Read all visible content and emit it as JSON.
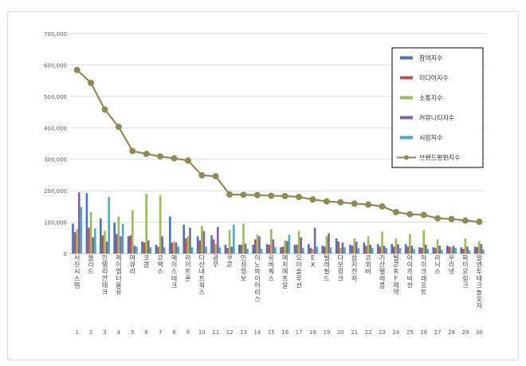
{
  "chart_data": {
    "type": "bar",
    "categories": [
      "서진시스템",
      "쏠리드",
      "인텔리안테크",
      "케이엠더블유",
      "머큐리",
      "코콤",
      "코맥스",
      "에이스테크",
      "라이트론",
      "다산네트웍스",
      "광무",
      "쿠콘",
      "인성정보",
      "이노와이어리스",
      "유비쿼스",
      "에치에프알",
      "오이솔루션",
      "EX",
      "텔레필드",
      "다보링크",
      "삼지전자",
      "코위버",
      "기산텔레콤",
      "텔콘RF제약",
      "아이즈비전",
      "아이크래프트",
      "라닉스",
      "우리넷",
      "파이오링크",
      "알엔투테크놀로지"
    ],
    "rank_labels": [
      "1",
      "2",
      "3",
      "4",
      "5",
      "6",
      "7",
      "8",
      "9",
      "10",
      "11",
      "12",
      "13",
      "14",
      "15",
      "16",
      "17",
      "18",
      "19",
      "20",
      "21",
      "22",
      "23",
      "24",
      "25",
      "26",
      "27",
      "28",
      "29",
      "30"
    ],
    "ylim": [
      0,
      700000
    ],
    "yticks": [
      "0",
      "100,000",
      "200,000",
      "300,000",
      "400,000",
      "500,000",
      "600,000",
      "700,000"
    ],
    "ytick_values": [
      0,
      100000,
      200000,
      300000,
      400000,
      500000,
      600000,
      700000
    ],
    "grid": true,
    "legend_position": "top-right",
    "series": [
      {
        "name": "참여지수",
        "kind": "bar",
        "color": "#4472c4",
        "values": [
          95000,
          192000,
          112000,
          98000,
          55000,
          38000,
          28000,
          118000,
          92000,
          55000,
          58000,
          28000,
          28000,
          28000,
          30000,
          20000,
          28000,
          30000,
          25000,
          48000,
          28000,
          35000,
          30000,
          30000,
          30000,
          20000,
          20000,
          25000,
          20000,
          22000
        ]
      },
      {
        "name": "미디어지수",
        "kind": "bar",
        "color": "#c0504d",
        "values": [
          68000,
          82000,
          58000,
          62000,
          58000,
          35000,
          22000,
          35000,
          48000,
          42000,
          45000,
          18000,
          28000,
          45000,
          28000,
          22000,
          28000,
          18000,
          22000,
          38000,
          25000,
          25000,
          22000,
          22000,
          22000,
          18000,
          18000,
          22000,
          15000,
          20000
        ]
      },
      {
        "name": "소통지수",
        "kind": "bar",
        "color": "#9bbb59",
        "values": [
          78000,
          132000,
          72000,
          118000,
          138000,
          190000,
          185000,
          38000,
          55000,
          88000,
          30000,
          75000,
          95000,
          60000,
          78000,
          42000,
          72000,
          15000,
          55000,
          18000,
          48000,
          55000,
          70000,
          48000,
          62000,
          75000,
          45000,
          20000,
          48000,
          40000
        ]
      },
      {
        "name": "커뮤니티지수",
        "kind": "bar",
        "color": "#8064a2",
        "values": [
          195000,
          52000,
          38000,
          55000,
          25000,
          42000,
          55000,
          35000,
          82000,
          72000,
          85000,
          22000,
          32000,
          55000,
          45000,
          40000,
          52000,
          82000,
          65000,
          35000,
          38000,
          28000,
          25000,
          30000,
          25000,
          28000,
          25000,
          25000,
          22000,
          30000
        ]
      },
      {
        "name": "시장지수",
        "kind": "bar",
        "color": "#4bacc6",
        "values": [
          148000,
          80000,
          180000,
          95000,
          22000,
          20000,
          20000,
          22000,
          20000,
          22000,
          20000,
          92000,
          15000,
          15000,
          20000,
          60000,
          18000,
          22000,
          20000,
          20000,
          18000,
          18000,
          18000,
          18000,
          15000,
          15000,
          12000,
          18000,
          10000,
          12000
        ]
      },
      {
        "name": "브랜드평판지수",
        "kind": "line",
        "color": "#938953",
        "values": [
          584000,
          543000,
          458000,
          403000,
          326000,
          317000,
          309000,
          303000,
          296000,
          249000,
          246000,
          188000,
          187000,
          186000,
          184000,
          183000,
          180000,
          172000,
          166000,
          163000,
          159000,
          156000,
          150000,
          132000,
          125000,
          123000,
          112000,
          110000,
          105000,
          101000
        ]
      }
    ]
  }
}
